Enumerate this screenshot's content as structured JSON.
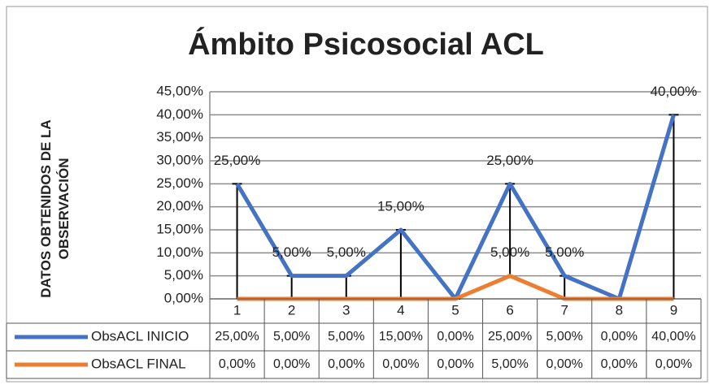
{
  "chart_data": {
    "type": "line",
    "title": "Ámbito Psicosocial ACL",
    "y_label": "DATOS OBTENIDOS DE LA OBSERVACIÓN",
    "categories": [
      "1",
      "2",
      "3",
      "4",
      "5",
      "6",
      "7",
      "8",
      "9"
    ],
    "series": [
      {
        "name": "ObsACL INICIO",
        "color": "#4472c4",
        "values": [
          25,
          5,
          5,
          15,
          0,
          25,
          5,
          0,
          40
        ],
        "value_labels": [
          "25,00%",
          "5,00%",
          "5,00%",
          "15,00%",
          "0,00%",
          "25,00%",
          "5,00%",
          "0,00%",
          "40,00%"
        ]
      },
      {
        "name": "ObsACL FINAL",
        "color": "#ed7d31",
        "values": [
          0,
          0,
          0,
          0,
          0,
          5,
          0,
          0,
          0
        ],
        "value_labels": [
          "0,00%",
          "0,00%",
          "0,00%",
          "0,00%",
          "0,00%",
          "5,00%",
          "0,00%",
          "0,00%",
          "0,00%"
        ]
      }
    ],
    "ylim": [
      0,
      45
    ],
    "yticks": [
      {
        "value": 0,
        "label": "0,00%"
      },
      {
        "value": 5,
        "label": "5,00%"
      },
      {
        "value": 10,
        "label": "10,00%"
      },
      {
        "value": 15,
        "label": "15,00%"
      },
      {
        "value": 20,
        "label": "20,00%"
      },
      {
        "value": 25,
        "label": "25,00%"
      },
      {
        "value": 30,
        "label": "30,00%"
      },
      {
        "value": 35,
        "label": "35,00%"
      },
      {
        "value": 40,
        "label": "40,00%"
      },
      {
        "value": 45,
        "label": "45,00%"
      }
    ],
    "grid": true,
    "data_table": true
  }
}
